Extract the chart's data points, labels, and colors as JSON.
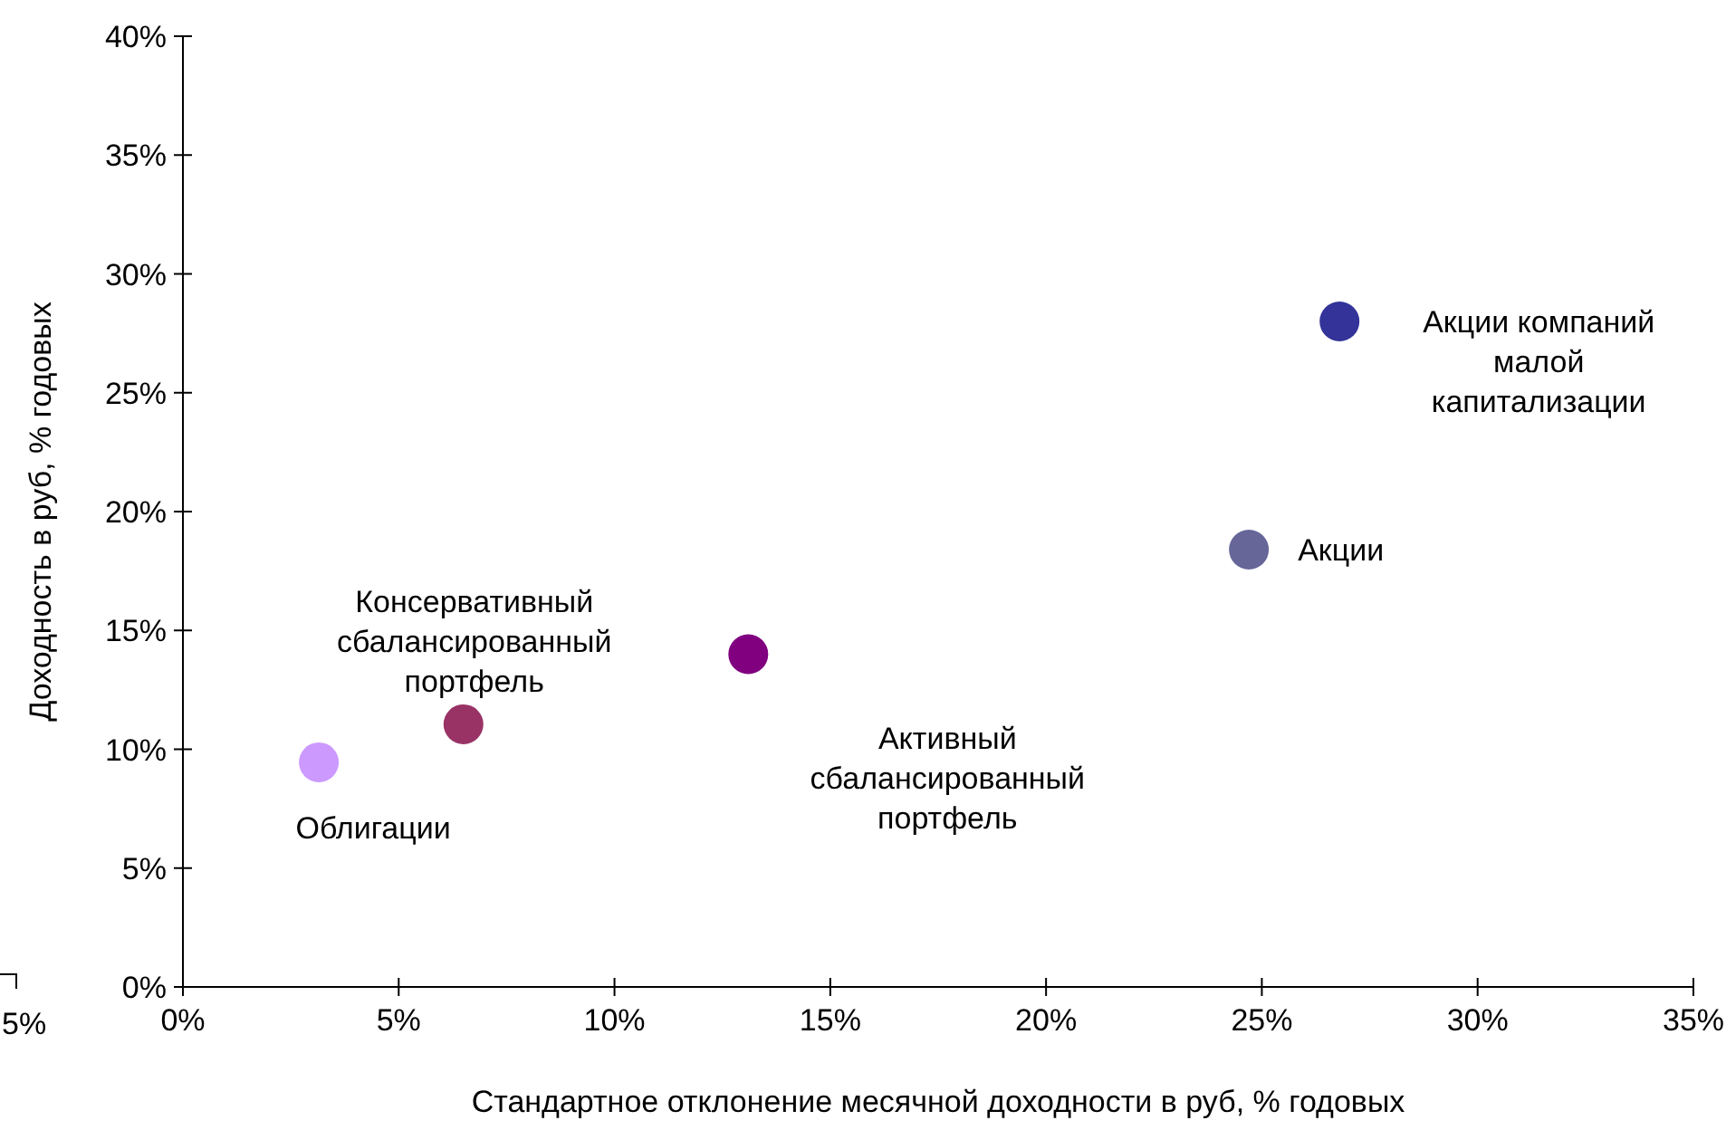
{
  "chart_data": {
    "type": "scatter",
    "xlabel": "Стандартное отклонение  месячной доходности в руб, % годовых",
    "ylabel": "Доходность в руб, % годовых",
    "marker": "circle",
    "grid": false,
    "xlim": [
      0,
      35
    ],
    "xticks": [
      {
        "value": 0,
        "label": "0%"
      },
      {
        "value": 5,
        "label": "5%"
      },
      {
        "value": 10,
        "label": "10%"
      },
      {
        "value": 15,
        "label": "15%"
      },
      {
        "value": 20,
        "label": "20%"
      },
      {
        "value": 25,
        "label": "25%"
      },
      {
        "value": 30,
        "label": "30%"
      },
      {
        "value": 35,
        "label": "35%"
      }
    ],
    "ylim": [
      0,
      40
    ],
    "yticks": [
      {
        "value": 0,
        "label": "0%"
      },
      {
        "value": 5,
        "label": "5%"
      },
      {
        "value": 10,
        "label": "10%"
      },
      {
        "value": 15,
        "label": "15%"
      },
      {
        "value": 20,
        "label": "20%"
      },
      {
        "value": 25,
        "label": "25%"
      },
      {
        "value": 30,
        "label": "30%"
      },
      {
        "value": 35,
        "label": "35%"
      },
      {
        "value": 40,
        "label": "40%"
      }
    ],
    "annotations": [
      "5%"
    ],
    "series": [
      {
        "name": "Облигации",
        "color": "#cc99ff",
        "x": [
          3.15
        ],
        "values": [
          9.45
        ]
      },
      {
        "name": "Консервативный сбалансированный портфель",
        "color": "#993366",
        "x": [
          6.5
        ],
        "values": [
          11.05
        ]
      },
      {
        "name": "Активный сбалансированный портфель",
        "color": "#800080",
        "x": [
          13.1
        ],
        "values": [
          14.0
        ]
      },
      {
        "name": "Акции",
        "color": "#666699",
        "x": [
          24.7
        ],
        "values": [
          18.4
        ]
      },
      {
        "name": "Акции компаний малой капитализации",
        "color": "#333399",
        "x": [
          26.8
        ],
        "values": [
          28.0
        ]
      }
    ]
  }
}
